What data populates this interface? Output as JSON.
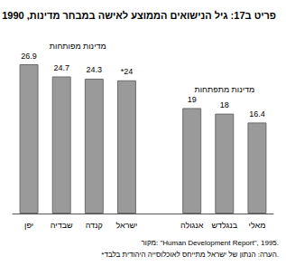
{
  "chart_data": {
    "type": "bar",
    "title": "פריט ב17: גיל הנישואים הממוצע לאישה במבחר מדינות, 1990",
    "categories": [
      "יפן",
      "שבדיה",
      "קנדה",
      "ישראל",
      null,
      "אנגולה",
      "בנגלדש",
      "מאלי"
    ],
    "values": [
      26.9,
      24.7,
      24.3,
      24,
      null,
      19,
      18,
      16.4
    ],
    "value_labels": [
      "26.9",
      "24.7",
      "24.3",
      "*24",
      null,
      "19",
      "18",
      "16.4"
    ],
    "groups": [
      {
        "label": "מדינות מפותחות",
        "categories": [
          "יפן",
          "שבדיה",
          "קנדה",
          "ישראל"
        ]
      },
      {
        "label": "מדינות מתפתחות",
        "categories": [
          "אנגולה",
          "בנגלדש",
          "מאלי"
        ]
      }
    ],
    "source": "מקור: \"Human Development Report\", 1995.",
    "note": "*הערה: הנתון של ישראל מתייחס לאוכלוסייה היהודית בלבד.",
    "color": "#9a9a9a",
    "ylim": [
      0,
      30
    ],
    "grid": false,
    "data_labels": true,
    "tick_labels": "x"
  }
}
